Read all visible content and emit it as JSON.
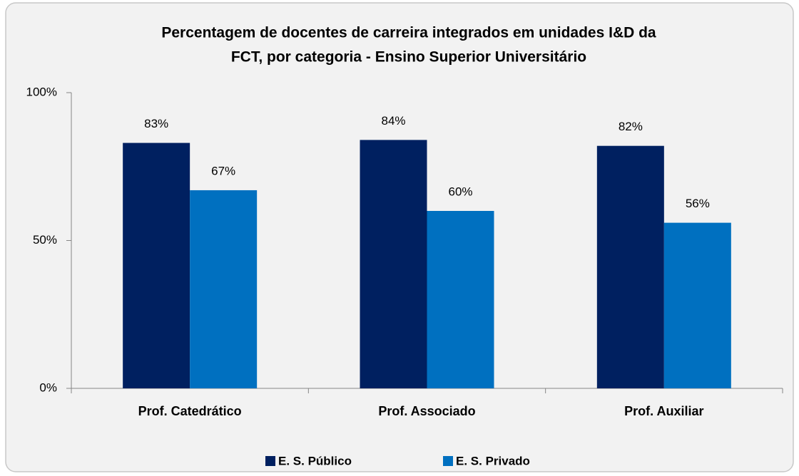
{
  "chart_data": {
    "type": "bar",
    "title": [
      "Percentagem de docentes de carreira integrados em unidades I&D da",
      "FCT, por categoria - Ensino Superior Universitário"
    ],
    "categories": [
      "Prof. Catedrático",
      "Prof. Associado",
      "Prof. Auxiliar"
    ],
    "series": [
      {
        "name": "E. S. Público",
        "color": "#002060",
        "values": [
          83,
          84,
          82
        ],
        "value_labels": [
          "83%",
          "84%",
          "82%"
        ]
      },
      {
        "name": "E. S. Privado",
        "color": "#0070c0",
        "values": [
          67,
          60,
          56
        ],
        "value_labels": [
          "67%",
          "60%",
          "56%"
        ]
      }
    ],
    "ylim": [
      0,
      100
    ],
    "yticks": [
      {
        "value": 0,
        "label": "0%"
      },
      {
        "value": 50,
        "label": "50%"
      },
      {
        "value": 100,
        "label": "100%"
      }
    ],
    "legend": "bottom"
  }
}
